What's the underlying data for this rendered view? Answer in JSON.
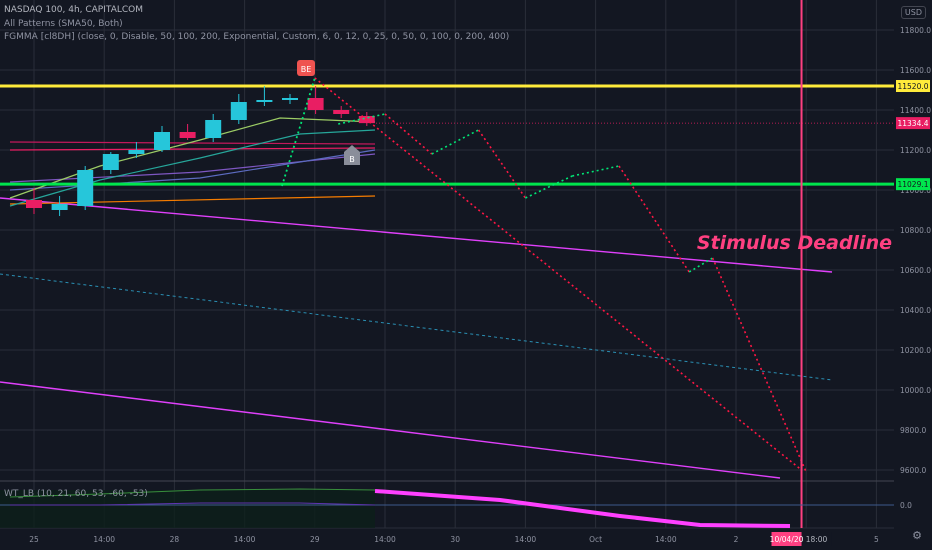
{
  "header": {
    "symbol_line": "NASDAQ 100, 4h, CAPITALCOM",
    "indicator_1": "All Patterns (SMA50, Both)",
    "indicator_2": "FGMMA [cl8DH] (close, 0, Disable, 50, 100, 200, Exponential, Custom, 6, 0, 12, 0, 25, 0, 50, 0, 100, 0, 200, 400)",
    "oscillator": "WT_LB (10, 21, 60, 53, -60, -53)",
    "currency_button": "USD"
  },
  "colors": {
    "background": "#131722",
    "grid": "#2a2e39",
    "bull": "#26c6da",
    "bear": "#e91e63",
    "yellow_line": "#ffeb3b",
    "green_line": "#00e64d",
    "magenta": "#e040fb",
    "deadline": "#ff4081",
    "projection_red": "#ff1744",
    "projection_green": "#00e676",
    "dashed_blue": "#2a8fb3"
  },
  "chart_data": {
    "type": "candlestick",
    "title": "NASDAQ 100, 4h, CAPITALCOM",
    "ylim": [
      9540,
      11980
    ],
    "y_ticks": [
      "11800.0",
      "11600.0",
      "11400.0",
      "11200.0",
      "11000.0",
      "10800.0",
      "10600.0",
      "10400.0",
      "10200.0",
      "10000.0",
      "9800.0",
      "9600.0"
    ],
    "x_ticks": [
      "25",
      "14:00",
      "28",
      "14:00",
      "29",
      "14:00",
      "30",
      "14:00",
      "Oct",
      "14:00",
      "2",
      "14:00",
      "5"
    ],
    "x_tick_slots": [
      0,
      3,
      6,
      9,
      12,
      15,
      18,
      21,
      24,
      27,
      30,
      33,
      36
    ],
    "candles": [
      {
        "o": 10950,
        "h": 11010,
        "l": 10880,
        "c": 10910
      },
      {
        "o": 10900,
        "h": 10970,
        "l": 10870,
        "c": 10930
      },
      {
        "o": 10920,
        "h": 11120,
        "l": 10900,
        "c": 11100
      },
      {
        "o": 11100,
        "h": 11190,
        "l": 11080,
        "c": 11180
      },
      {
        "o": 11180,
        "h": 11240,
        "l": 11160,
        "c": 11200
      },
      {
        "o": 11200,
        "h": 11320,
        "l": 11190,
        "c": 11290
      },
      {
        "o": 11290,
        "h": 11330,
        "l": 11250,
        "c": 11260
      },
      {
        "o": 11260,
        "h": 11380,
        "l": 11240,
        "c": 11350
      },
      {
        "o": 11350,
        "h": 11480,
        "l": 11330,
        "c": 11440
      },
      {
        "o": 11440,
        "h": 11520,
        "l": 11420,
        "c": 11450
      },
      {
        "o": 11450,
        "h": 11480,
        "l": 11430,
        "c": 11460
      },
      {
        "o": 11460,
        "h": 11520,
        "l": 11380,
        "c": 11400
      },
      {
        "o": 11400,
        "h": 11420,
        "l": 11360,
        "c": 11380
      },
      {
        "o": 11370,
        "h": 11390,
        "l": 11320,
        "c": 11334.4
      }
    ],
    "horizontal_levels": [
      {
        "value": 11520.0,
        "label": "11520.0",
        "color": "#ffeb3b"
      },
      {
        "value": 11029.1,
        "label": "11029.1",
        "color": "#00e64d"
      }
    ],
    "last_price": {
      "value": 11334.4,
      "label": "11334.4"
    },
    "projection_upper": [
      {
        "slot": 13,
        "y": 11330
      },
      {
        "slot": 15,
        "y": 11380
      },
      {
        "slot": 17,
        "y": 11180
      },
      {
        "slot": 19,
        "y": 11300
      },
      {
        "slot": 21,
        "y": 10960
      },
      {
        "slot": 23,
        "y": 11070
      },
      {
        "slot": 25,
        "y": 11120
      },
      {
        "slot": 28,
        "y": 10590
      },
      {
        "slot": 29,
        "y": 10660
      },
      {
        "slot": 33,
        "y": 9590
      }
    ],
    "projection_lower": [
      {
        "slot": 12,
        "y": 11560
      },
      {
        "slot": 32.8,
        "y": 9600
      }
    ],
    "annotation": {
      "text": "Stimulus Deadline",
      "slot": 32.8
    },
    "pattern_label": "BE",
    "pattern_label_2": "B",
    "bottom_labels": {
      "date": "10/04/20",
      "time": "18:00"
    }
  }
}
